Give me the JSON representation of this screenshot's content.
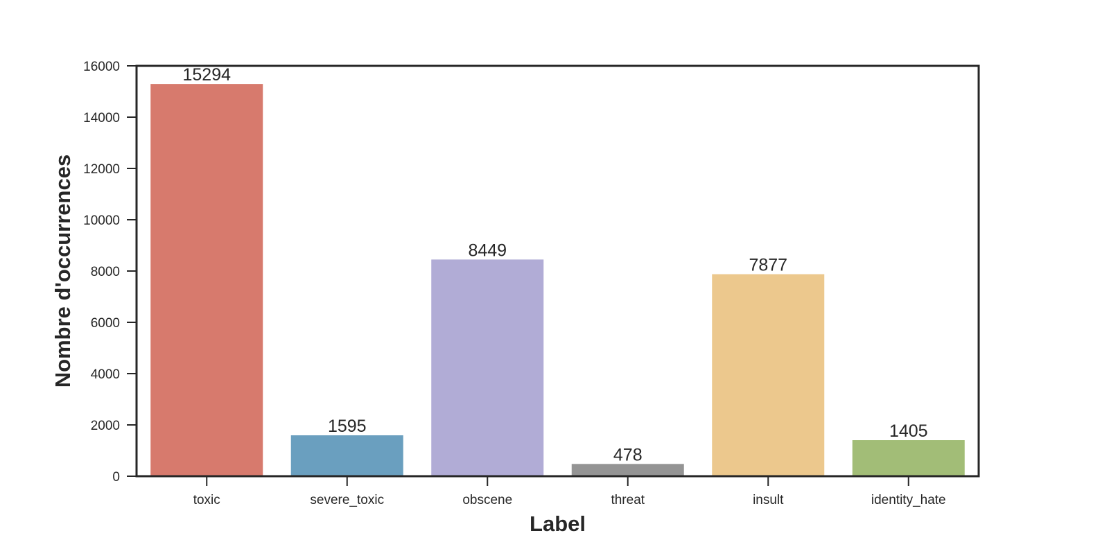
{
  "chart_data": {
    "type": "bar",
    "categories": [
      "toxic",
      "severe_toxic",
      "obscene",
      "threat",
      "insult",
      "identity_hate"
    ],
    "values": [
      15294,
      1595,
      8449,
      478,
      7877,
      1405
    ],
    "data_labels": [
      "15294",
      "1595",
      "8449",
      "478",
      "7877",
      "1405"
    ],
    "colors": [
      "#d77a6d",
      "#6a9fbf",
      "#b1acd6",
      "#949494",
      "#ecc88d",
      "#a2bd77"
    ],
    "xlabel": "Label",
    "ylabel": "Nombre d'occurrences",
    "ylim": [
      0,
      16000
    ],
    "yticks": [
      0,
      2000,
      4000,
      6000,
      8000,
      10000,
      12000,
      14000,
      16000
    ],
    "ytick_labels": [
      "0",
      "2000",
      "4000",
      "6000",
      "8000",
      "10000",
      "12000",
      "14000",
      "16000"
    ],
    "grid": false,
    "legend": "none"
  }
}
